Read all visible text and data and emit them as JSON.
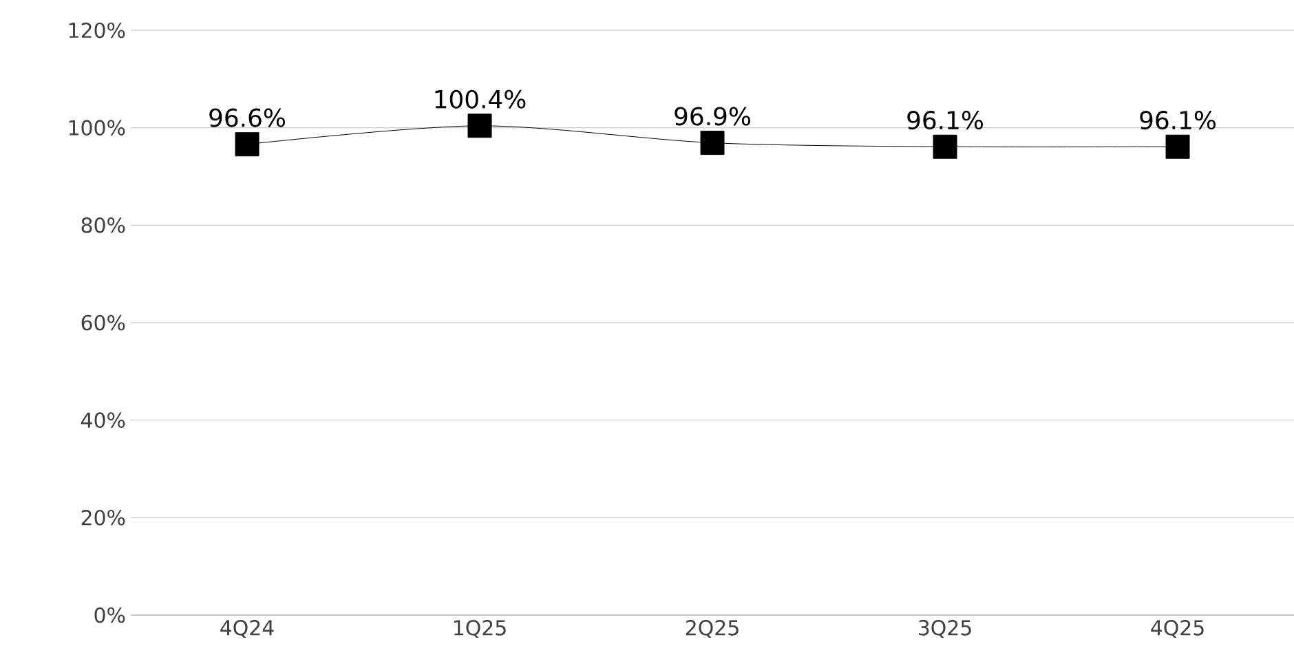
{
  "chart_data": {
    "type": "line",
    "categories": [
      "4Q24",
      "1Q25",
      "2Q25",
      "3Q25",
      "4Q25"
    ],
    "series": [
      {
        "color": "#000000",
        "values": [
          96.6,
          100.4,
          96.9,
          96.1,
          96.1
        ],
        "value_labels": [
          "96.6%",
          "100.4%",
          "96.9%",
          "96.1%",
          "96.1%"
        ]
      }
    ],
    "ylim": [
      0,
      120
    ],
    "yticks": [
      {
        "value": 0,
        "label": "0%"
      },
      {
        "value": 20,
        "label": "20%"
      },
      {
        "value": 40,
        "label": "40%"
      },
      {
        "value": 60,
        "label": "60%"
      },
      {
        "value": 80,
        "label": "80%"
      },
      {
        "value": 100,
        "label": "100%"
      },
      {
        "value": 120,
        "label": "120%"
      }
    ],
    "grid": "y",
    "legend": false,
    "marker": "square",
    "line_style": "solid"
  }
}
